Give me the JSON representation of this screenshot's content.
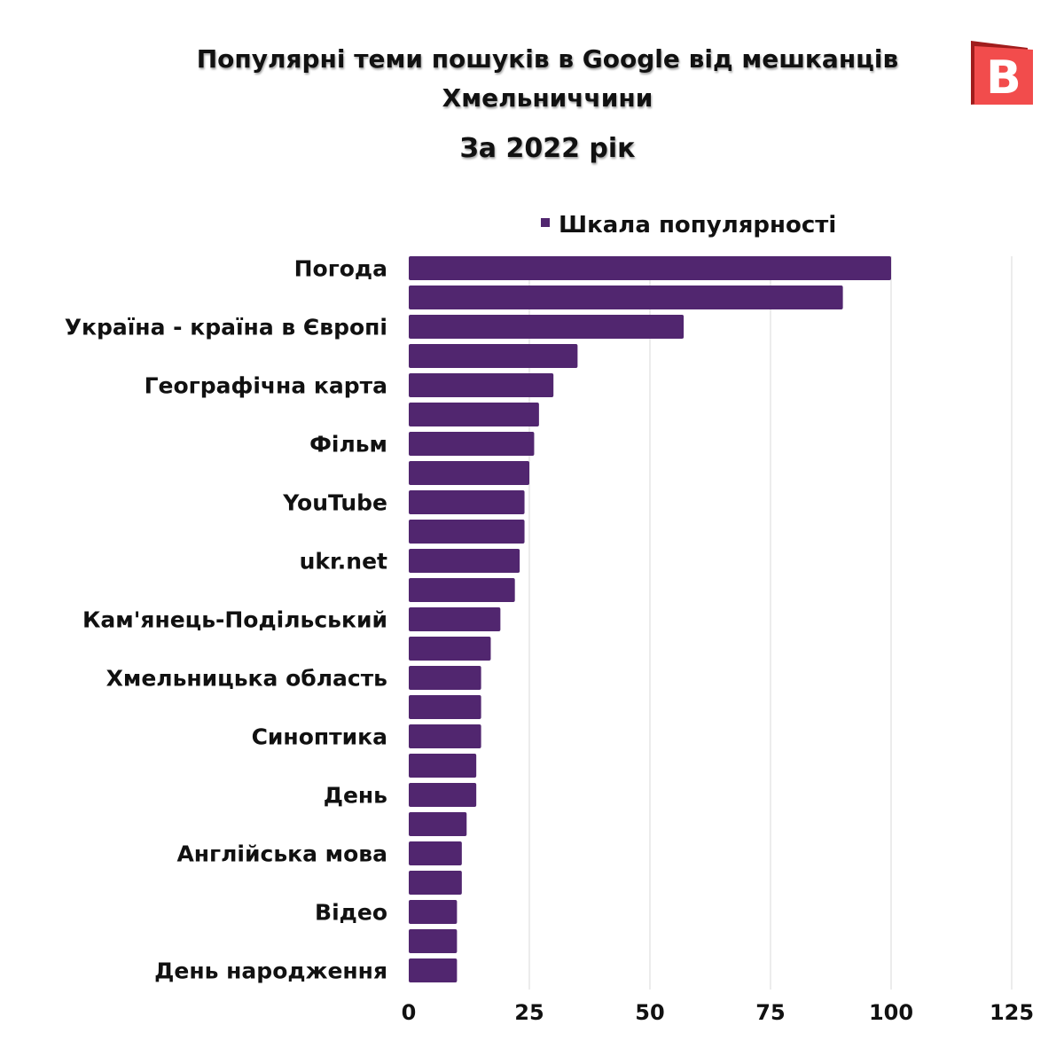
{
  "chart_data": {
    "type": "bar",
    "orientation": "horizontal",
    "title": "Популярні теми пошуків в Google від мешканців Хмельниччини",
    "subtitle": "За 2022 рік",
    "legend": {
      "position": "top",
      "entries": [
        "Шкала популярності"
      ]
    },
    "series": [
      {
        "name": "Шкала популярності",
        "color": "#51266f",
        "values": [
          100,
          90,
          57,
          35,
          30,
          27,
          26,
          25,
          24,
          24,
          23,
          22,
          19,
          17,
          15,
          15,
          15,
          14,
          14,
          12,
          11,
          11,
          10,
          10,
          10
        ]
      }
    ],
    "categories": [
      "Погода",
      "",
      "Україна - країна в Європі",
      "",
      "Географічна карта",
      "",
      "Фільм",
      "",
      "YouTube",
      "",
      "ukr.net",
      "",
      "Кам'янець-Подільський",
      "",
      "Хмельницька область",
      "",
      "Синоптика",
      "",
      "День",
      "",
      "Англійська мова",
      "",
      "Відео",
      "",
      "День народження"
    ],
    "xlim": [
      0,
      125
    ],
    "xticks": [
      "0",
      "25",
      "50",
      "75",
      "100",
      "125"
    ],
    "grid": "vertical",
    "xlabel": "",
    "ylabel": ""
  },
  "logo": {
    "text": "B",
    "color": "#f04848"
  }
}
